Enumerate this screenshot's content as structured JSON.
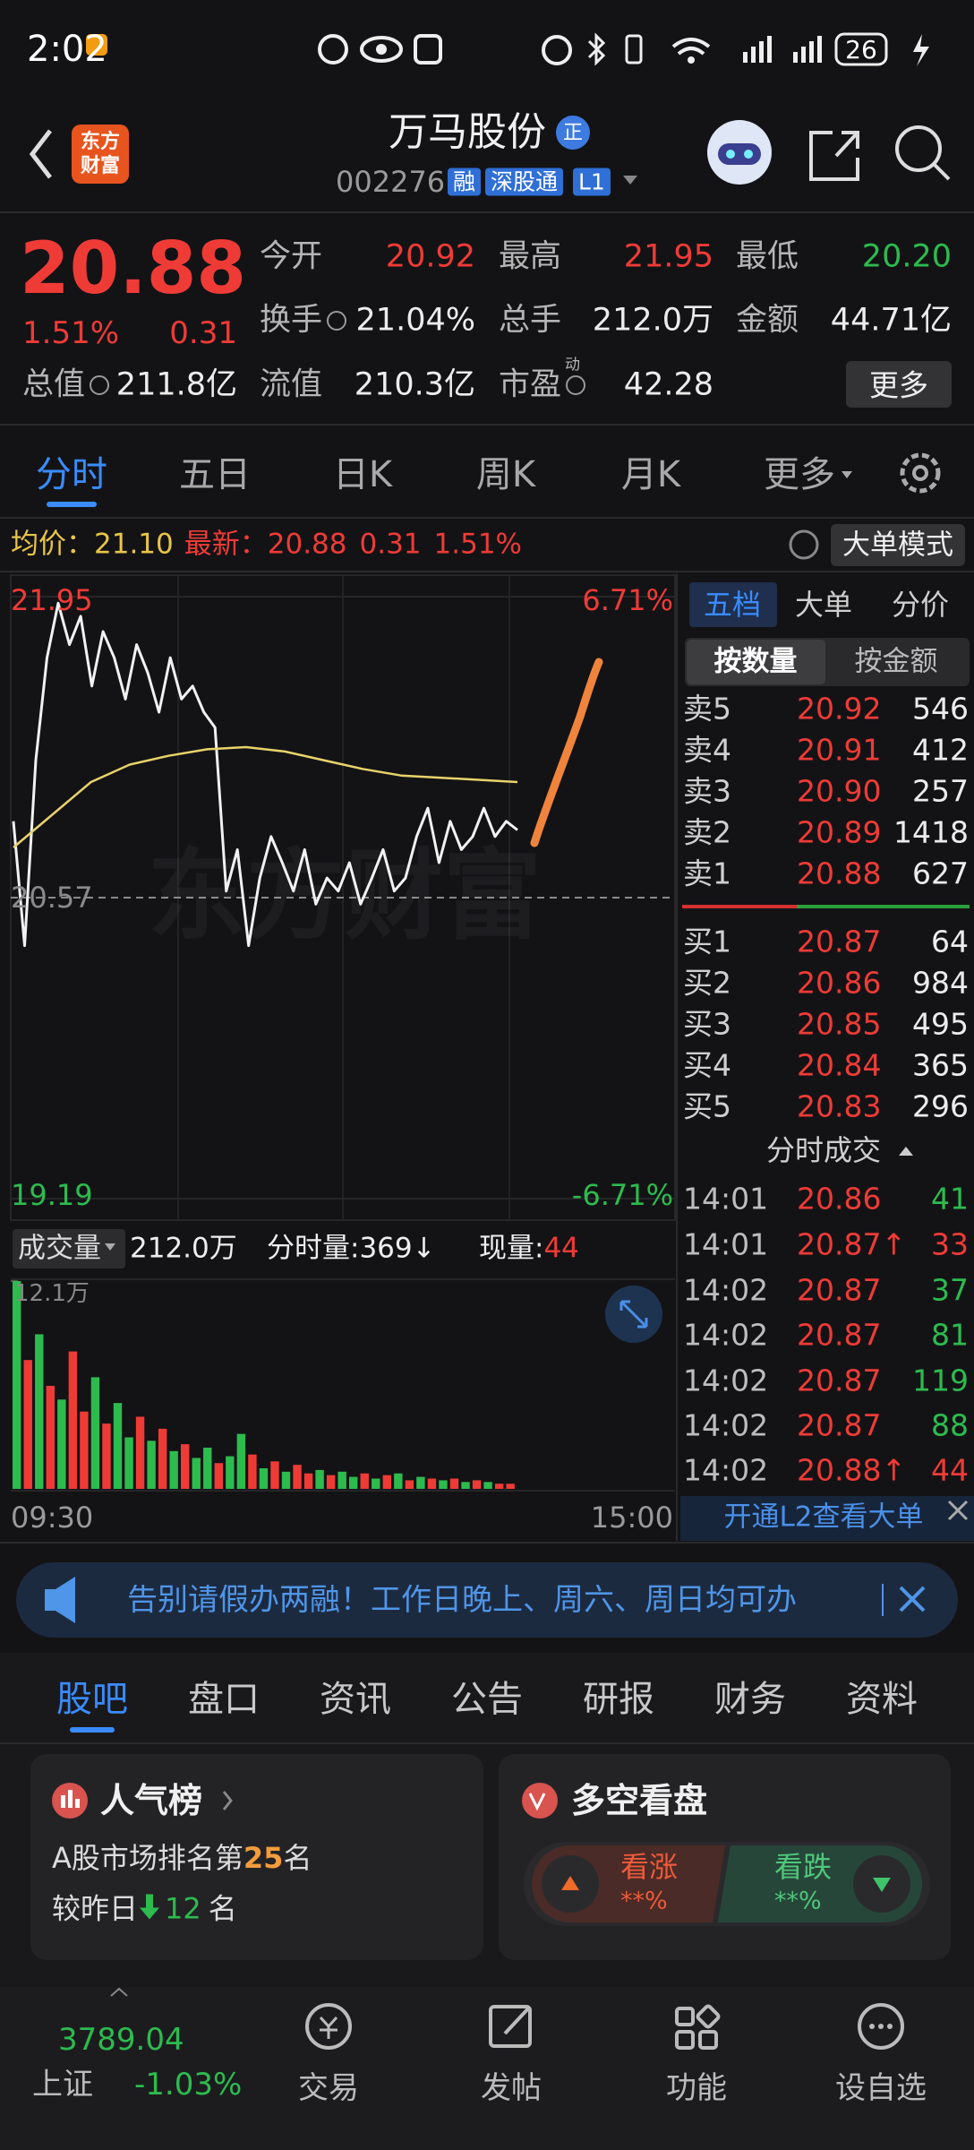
{
  "status_bar": {
    "time": "2:02",
    "battery": "26"
  },
  "header": {
    "logo": [
      "东方",
      "财富"
    ],
    "title": "万马股份",
    "badge": "正",
    "code": "002276",
    "tags": [
      "融",
      "深股通",
      "L1"
    ]
  },
  "quote": {
    "price": "20.88",
    "change_pct": "1.51%",
    "change": "0.31",
    "fields": [
      {
        "label": "今开",
        "value": "20.92",
        "color": "#ef3b36"
      },
      {
        "label": "最高",
        "value": "21.95",
        "color": "#ef3b36"
      },
      {
        "label": "最低",
        "value": "20.20",
        "color": "#2dbb4e"
      },
      {
        "label": "换手",
        "value": "21.04%"
      },
      {
        "label": "总手",
        "value": "212.0万"
      },
      {
        "label": "金额",
        "value": "44.71亿"
      },
      {
        "label": "总值",
        "value": "211.8亿"
      },
      {
        "label": "流值",
        "value": "210.3亿"
      },
      {
        "label": "市盈",
        "sup": "动",
        "value": "42.28"
      }
    ],
    "more": "更多"
  },
  "period_tabs": [
    "分时",
    "五日",
    "日K",
    "周K",
    "月K",
    "更多"
  ],
  "info_bar": {
    "avg_label": "均价：",
    "avg": "21.10",
    "latest_label": "最新：",
    "latest": "20.88",
    "change": "0.31",
    "change_pct": "1.51%",
    "mode_button": "大单模式"
  },
  "chart_data": [
    {
      "type": "line",
      "watermark": "东方财富",
      "ylim": [
        19.19,
        21.95
      ],
      "yticks": [
        21.95,
        20.57,
        19.19
      ],
      "y2lim": [
        -6.71,
        6.71
      ],
      "y2ticks": [
        {
          "value": 6.71,
          "label": "6.71%"
        },
        {
          "value": -6.71,
          "label": "-6.71%"
        }
      ],
      "x_labels": [
        "09:30",
        "15:00"
      ],
      "series": [
        {
          "color": "#f2f2f2",
          "values": [
            20.92,
            20.35,
            21.2,
            21.67,
            21.92,
            21.73,
            21.86,
            21.54,
            21.79,
            21.67,
            21.48,
            21.73,
            21.6,
            21.42,
            21.67,
            21.48,
            21.54,
            21.42,
            21.35,
            20.6,
            20.79,
            20.35,
            20.66,
            20.85,
            20.73,
            20.6,
            20.79,
            20.54,
            20.66,
            20.6,
            20.73,
            20.54,
            20.66,
            20.79,
            20.6,
            20.66,
            20.85,
            20.98,
            20.73,
            20.92,
            20.79,
            20.85,
            20.98,
            20.85,
            20.92,
            20.88
          ]
        },
        {
          "color": "#e8d36a",
          "values": [
            20.8,
            20.95,
            21.1,
            21.18,
            21.22,
            21.25,
            21.26,
            21.24,
            21.2,
            21.16,
            21.13,
            21.12,
            21.11,
            21.1
          ]
        }
      ]
    },
    {
      "type": "bar",
      "selector": "成交量",
      "total": "212.0万",
      "period_volume": "分时量:369↓",
      "current_label": "现量:",
      "current": "44",
      "ylim": [
        0,
        12.1
      ],
      "yticks": [
        {
          "value": 12.1,
          "label": "12.1万"
        }
      ],
      "values": [
        12.1,
        7.5,
        9.0,
        6.0,
        5.2,
        8.0,
        4.5,
        6.5,
        3.8,
        5.0,
        3.0,
        4.2,
        2.8,
        3.5,
        2.2,
        2.6,
        1.8,
        2.4,
        1.5,
        1.9,
        3.2,
        2.0,
        1.2,
        1.6,
        1.0,
        1.4,
        0.9,
        1.1,
        0.8,
        1.0,
        0.7,
        0.9,
        0.6,
        0.8,
        0.9,
        0.5,
        0.7,
        0.6,
        0.5,
        0.6,
        0.4,
        0.5,
        0.4,
        0.3,
        0.3
      ],
      "colors": [
        "#2dbb4e",
        "#ef3b36",
        "#2dbb4e",
        "#ef3b36",
        "#2dbb4e",
        "#ef3b36",
        "#ef3b36",
        "#2dbb4e",
        "#ef3b36",
        "#2dbb4e",
        "#2dbb4e",
        "#ef3b36",
        "#2dbb4e",
        "#ef3b36",
        "#2dbb4e",
        "#ef3b36",
        "#2dbb4e",
        "#2dbb4e",
        "#ef3b36",
        "#2dbb4e",
        "#2dbb4e",
        "#ef3b36",
        "#2dbb4e",
        "#ef3b36",
        "#2dbb4e",
        "#ef3b36",
        "#ef3b36",
        "#2dbb4e",
        "#ef3b36",
        "#2dbb4e",
        "#2dbb4e",
        "#ef3b36",
        "#2dbb4e",
        "#ef3b36",
        "#2dbb4e",
        "#ef3b36",
        "#2dbb4e",
        "#ef3b36",
        "#2dbb4e",
        "#ef3b36",
        "#2dbb4e",
        "#ef3b36",
        "#2dbb4e",
        "#ef3b36",
        "#ef3b36"
      ]
    }
  ],
  "order_book": {
    "tabs": [
      "五档",
      "大单",
      "分价"
    ],
    "modes": [
      "按数量",
      "按金额"
    ],
    "asks": [
      {
        "label": "卖5",
        "price": "20.92",
        "volume": "546"
      },
      {
        "label": "卖4",
        "price": "20.91",
        "volume": "412"
      },
      {
        "label": "卖3",
        "price": "20.90",
        "volume": "257"
      },
      {
        "label": "卖2",
        "price": "20.89",
        "volume": "1418"
      },
      {
        "label": "卖1",
        "price": "20.88",
        "volume": "627"
      }
    ],
    "bids": [
      {
        "label": "买1",
        "price": "20.87",
        "volume": "64"
      },
      {
        "label": "买2",
        "price": "20.86",
        "volume": "984"
      },
      {
        "label": "买3",
        "price": "20.85",
        "volume": "495"
      },
      {
        "label": "买4",
        "price": "20.84",
        "volume": "365"
      },
      {
        "label": "买5",
        "price": "20.83",
        "volume": "296"
      }
    ]
  },
  "trades": {
    "title": "分时成交",
    "rows": [
      {
        "time": "14:01",
        "price": "20.86",
        "volume": "41",
        "color": "#2dbb4e"
      },
      {
        "time": "14:01",
        "price": "20.87↑",
        "volume": "33",
        "color": "#ef3b36"
      },
      {
        "time": "14:02",
        "price": "20.87",
        "volume": "37",
        "color": "#2dbb4e"
      },
      {
        "time": "14:02",
        "price": "20.87",
        "volume": "81",
        "color": "#2dbb4e"
      },
      {
        "time": "14:02",
        "price": "20.87",
        "volume": "119",
        "color": "#2dbb4e"
      },
      {
        "time": "14:02",
        "price": "20.87",
        "volume": "88",
        "color": "#2dbb4e"
      },
      {
        "time": "14:02",
        "price": "20.88↑",
        "volume": "44",
        "color": "#ef3b36"
      }
    ],
    "l2_promo": "开通L2查看大单"
  },
  "banner": "告别请假办两融！工作日晚上、周六、周日均可办",
  "sub_tabs": [
    "股吧",
    "盘口",
    "资讯",
    "公告",
    "研报",
    "财务",
    "资料"
  ],
  "popularity": {
    "title": "人气榜",
    "rank_prefix": "A股市场排名第",
    "rank": "25",
    "rank_suffix": "名",
    "change_prefix": "较昨日",
    "change": "12",
    "change_suffix": "名"
  },
  "sentiment": {
    "title": "多空看盘",
    "bull": "看涨",
    "bull_value": "**%",
    "bear": "看跌",
    "bear_value": "**%"
  },
  "bottom_nav": {
    "index_value": "3789.04",
    "index_name": "上证",
    "index_change": "-1.03%",
    "items": [
      "交易",
      "发帖",
      "功能",
      "设自选"
    ]
  }
}
